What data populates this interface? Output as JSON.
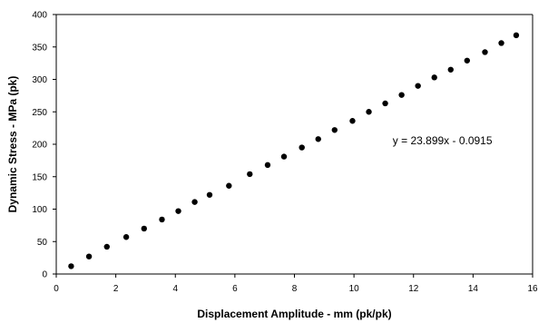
{
  "chart_data": {
    "type": "scatter",
    "title": "",
    "xlabel": "Displacement Amplitude - mm (pk/pk)",
    "ylabel": "Dynamic Stress - MPa (pk)",
    "xlim": [
      0,
      16
    ],
    "ylim": [
      0,
      400
    ],
    "xticks": [
      0,
      2,
      4,
      6,
      8,
      10,
      12,
      14,
      16
    ],
    "yticks": [
      0,
      50,
      100,
      150,
      200,
      250,
      300,
      350,
      400
    ],
    "grid": false,
    "legend": "none",
    "marker_color": "#000000",
    "series": [
      {
        "x": [
          0.5,
          1.1,
          1.7,
          2.35,
          2.95,
          3.55,
          4.1,
          4.65,
          5.15,
          5.8,
          6.5,
          7.1,
          7.65,
          8.25,
          8.8,
          9.35,
          9.95,
          10.5,
          11.05,
          11.6,
          12.15,
          12.7,
          13.25,
          13.8,
          14.4,
          14.95,
          15.45
        ],
        "y": [
          12,
          27,
          42,
          57,
          70,
          84,
          97,
          111,
          122,
          136,
          154,
          168,
          181,
          195,
          208,
          222,
          236,
          250,
          263,
          276,
          290,
          303,
          315,
          329,
          342,
          356,
          368
        ]
      }
    ],
    "annotations": [
      {
        "text": "y = 23.899x - 0.0915",
        "x": 11.3,
        "y": 200
      }
    ]
  }
}
